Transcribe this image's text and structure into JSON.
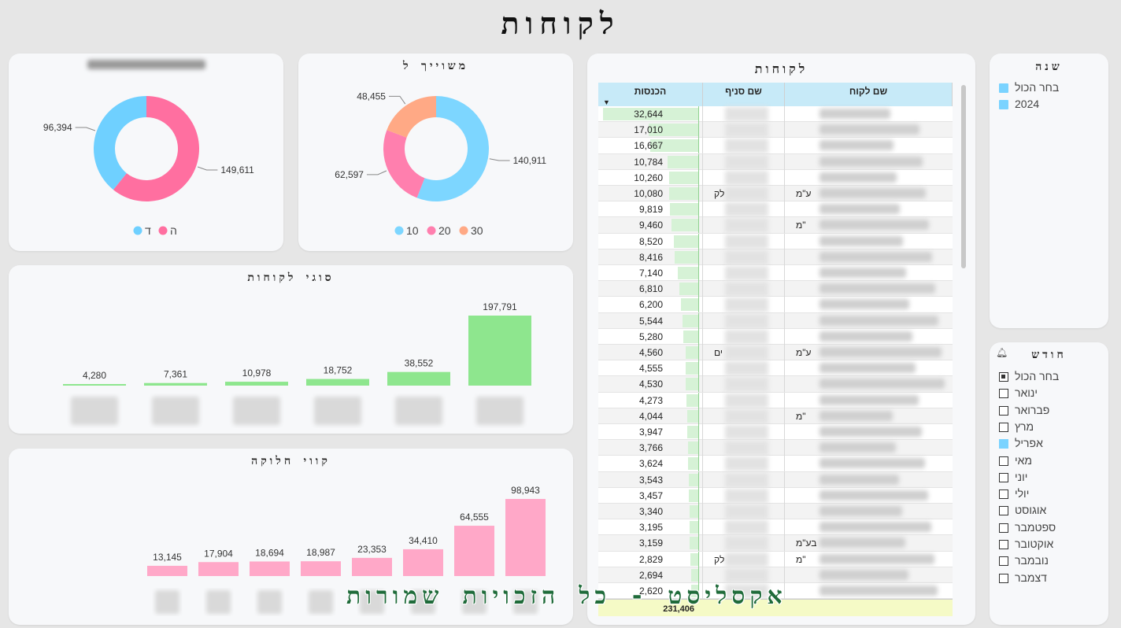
{
  "page_title": "לקוחות",
  "watermark": "אקסליסט - כל הזכויות שמורות",
  "donut_left": {
    "legend": [
      "ה",
      "ד"
    ],
    "slices": [
      {
        "label": "ה",
        "value": 149611,
        "value_text": "149,611",
        "color": "#ff6fa0"
      },
      {
        "label": "ד",
        "value": 96394,
        "value_text": "96,394",
        "color": "#6fd0ff"
      }
    ]
  },
  "donut_right": {
    "title": "משוייך ל",
    "legend": [
      "10",
      "20",
      "30"
    ],
    "slices": [
      {
        "label": "10",
        "value": 140911,
        "value_text": "140,911",
        "color": "#7dd6ff"
      },
      {
        "label": "20",
        "value": 62597,
        "value_text": "62,597",
        "color": "#ff7fae"
      },
      {
        "label": "30",
        "value": 48455,
        "value_text": "48,455",
        "color": "#ffa985"
      }
    ]
  },
  "customer_types": {
    "title": "סוגי לקוחות",
    "color": "#8ee68e",
    "values": [
      4280,
      7361,
      10978,
      18752,
      38552,
      197791
    ],
    "labels": [
      "4,280",
      "7,361",
      "10,978",
      "18,752",
      "38,552",
      "197,791"
    ]
  },
  "distribution_lines": {
    "title": "קווי חלוקה",
    "color": "#ffa8c8",
    "values": [
      13145,
      17904,
      18694,
      18987,
      23353,
      34410,
      64555,
      98943
    ],
    "labels": [
      "13,145",
      "17,904",
      "18,694",
      "18,987",
      "23,353",
      "34,410",
      "64,555",
      "98,943"
    ]
  },
  "customers_table": {
    "title": "לקוחות",
    "headers": {
      "name": "שם לקוח",
      "branch": "שם סניף",
      "revenue": "הכנסות"
    },
    "rows": [
      {
        "revenue": 32644,
        "text": "32,644",
        "name_suffix": "",
        "branch": ""
      },
      {
        "revenue": 17010,
        "text": "17,010",
        "name_suffix": "",
        "branch": ""
      },
      {
        "revenue": 16667,
        "text": "16,667",
        "name_suffix": "",
        "branch": ""
      },
      {
        "revenue": 10784,
        "text": "10,784",
        "name_suffix": "",
        "branch": ""
      },
      {
        "revenue": 10260,
        "text": "10,260",
        "name_suffix": "",
        "branch": ""
      },
      {
        "revenue": 10080,
        "text": "10,080",
        "name_suffix": "ע\"מ",
        "branch": "לק"
      },
      {
        "revenue": 9819,
        "text": "9,819",
        "name_suffix": "",
        "branch": ""
      },
      {
        "revenue": 9460,
        "text": "9,460",
        "name_suffix": "\"מ",
        "branch": ""
      },
      {
        "revenue": 8520,
        "text": "8,520",
        "name_suffix": "",
        "branch": ""
      },
      {
        "revenue": 8416,
        "text": "8,416",
        "name_suffix": "",
        "branch": ""
      },
      {
        "revenue": 7140,
        "text": "7,140",
        "name_suffix": "",
        "branch": ""
      },
      {
        "revenue": 6810,
        "text": "6,810",
        "name_suffix": "",
        "branch": ""
      },
      {
        "revenue": 6200,
        "text": "6,200",
        "name_suffix": "",
        "branch": ""
      },
      {
        "revenue": 5544,
        "text": "5,544",
        "name_suffix": "",
        "branch": ""
      },
      {
        "revenue": 5280,
        "text": "5,280",
        "name_suffix": "",
        "branch": ""
      },
      {
        "revenue": 4560,
        "text": "4,560",
        "name_suffix": "ע\"מ",
        "branch": "ים"
      },
      {
        "revenue": 4555,
        "text": "4,555",
        "name_suffix": "",
        "branch": ""
      },
      {
        "revenue": 4530,
        "text": "4,530",
        "name_suffix": "",
        "branch": ""
      },
      {
        "revenue": 4273,
        "text": "4,273",
        "name_suffix": "",
        "branch": ""
      },
      {
        "revenue": 4044,
        "text": "4,044",
        "name_suffix": "\"מ",
        "branch": ""
      },
      {
        "revenue": 3947,
        "text": "3,947",
        "name_suffix": "",
        "branch": ""
      },
      {
        "revenue": 3766,
        "text": "3,766",
        "name_suffix": "",
        "branch": ""
      },
      {
        "revenue": 3624,
        "text": "3,624",
        "name_suffix": "",
        "branch": ""
      },
      {
        "revenue": 3543,
        "text": "3,543",
        "name_suffix": "",
        "branch": ""
      },
      {
        "revenue": 3457,
        "text": "3,457",
        "name_suffix": "",
        "branch": ""
      },
      {
        "revenue": 3340,
        "text": "3,340",
        "name_suffix": "",
        "branch": ""
      },
      {
        "revenue": 3195,
        "text": "3,195",
        "name_suffix": "",
        "branch": ""
      },
      {
        "revenue": 3159,
        "text": "3,159",
        "name_suffix": "בע\"מ",
        "branch": ""
      },
      {
        "revenue": 2829,
        "text": "2,829",
        "name_suffix": "\"מ",
        "branch": "לק"
      },
      {
        "revenue": 2694,
        "text": "2,694",
        "name_suffix": "",
        "branch": ""
      },
      {
        "revenue": 2620,
        "text": "2,620",
        "name_suffix": "",
        "branch": ""
      }
    ],
    "total": "231,406"
  },
  "year_slicer": {
    "title": "שנה",
    "items": [
      {
        "label": "בחר הכול",
        "selected": true
      },
      {
        "label": "2024",
        "selected": true
      }
    ]
  },
  "month_slicer": {
    "title": "חודש",
    "items": [
      {
        "label": "בחר הכול",
        "state": "partial"
      },
      {
        "label": "ינואר",
        "state": "off"
      },
      {
        "label": "פברואר",
        "state": "off"
      },
      {
        "label": "מרץ",
        "state": "off"
      },
      {
        "label": "אפריל",
        "state": "on"
      },
      {
        "label": "מאי",
        "state": "off"
      },
      {
        "label": "יוני",
        "state": "off"
      },
      {
        "label": "יולי",
        "state": "off"
      },
      {
        "label": "אוגוסט",
        "state": "off"
      },
      {
        "label": "ספטמבר",
        "state": "off"
      },
      {
        "label": "אוקטובר",
        "state": "off"
      },
      {
        "label": "נובמבר",
        "state": "off"
      },
      {
        "label": "דצמבר",
        "state": "off"
      }
    ]
  }
}
